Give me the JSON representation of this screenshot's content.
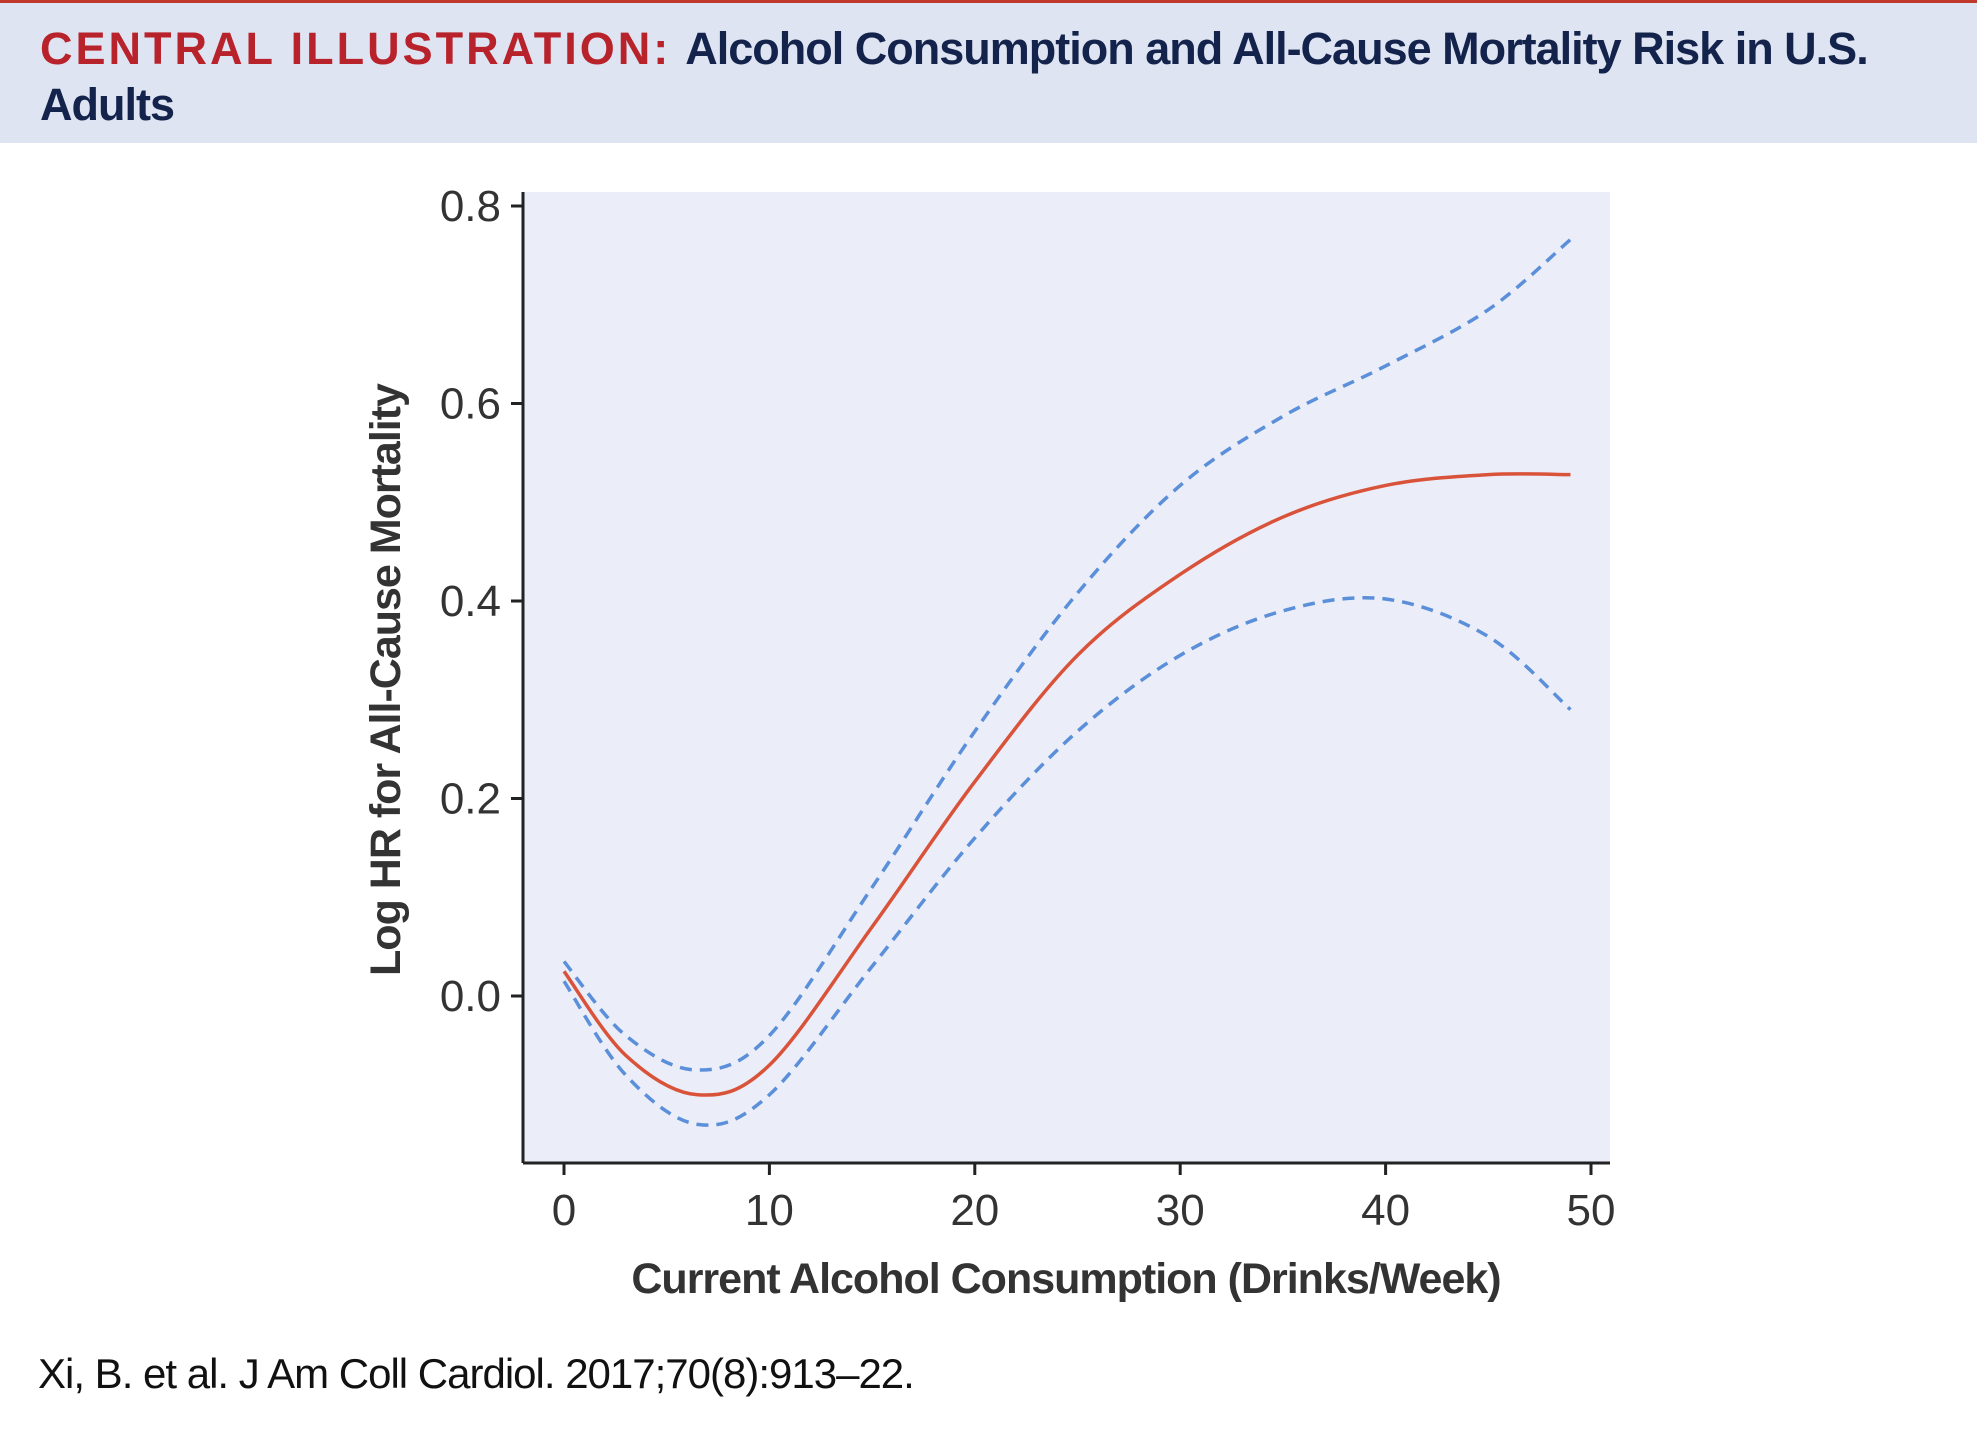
{
  "header": {
    "label": "CENTRAL ILLUSTRATION:",
    "title": "Alcohol Consumption and All-Cause Mortality Risk in U.S. Adults"
  },
  "citation": "Xi, B. et al. J Am Coll Cardiol. 2017;70(8):913–22.",
  "chart_data": {
    "type": "line",
    "title": "",
    "xlabel": "Current Alcohol Consumption (Drinks/Week)",
    "ylabel": "Log HR for All-Cause Mortality",
    "xlim": [
      -2,
      51
    ],
    "ylim": [
      -0.168,
      0.814
    ],
    "xticks": [
      0,
      10,
      20,
      30,
      40,
      50
    ],
    "xtick_labels": [
      "0",
      "10",
      "20",
      "30",
      "40",
      "50"
    ],
    "yticks": [
      0.0,
      0.2,
      0.4,
      0.6,
      0.8
    ],
    "ytick_labels": [
      "0.0",
      "0.2",
      "0.4",
      "0.6",
      "0.8"
    ],
    "grid": false,
    "background": "#ebeef8",
    "x": [
      0,
      3,
      6.5,
      10,
      15,
      20,
      25,
      30,
      35,
      40,
      45,
      49
    ],
    "series": [
      {
        "style": "solid",
        "color": "#d9533a",
        "values": [
          0.025,
          -0.06,
          -0.1,
          -0.07,
          0.07,
          0.217,
          0.345,
          0.427,
          0.485,
          0.517,
          0.528,
          0.528
        ]
      },
      {
        "style": "dashed",
        "color": "#5b8fd9",
        "values": [
          0.035,
          -0.04,
          -0.075,
          -0.04,
          0.11,
          0.268,
          0.408,
          0.517,
          0.587,
          0.638,
          0.695,
          0.766
        ]
      },
      {
        "style": "dashed",
        "color": "#5b8fd9",
        "values": [
          0.015,
          -0.08,
          -0.13,
          -0.1,
          0.03,
          0.16,
          0.268,
          0.345,
          0.39,
          0.402,
          0.364,
          0.29
        ]
      }
    ]
  }
}
